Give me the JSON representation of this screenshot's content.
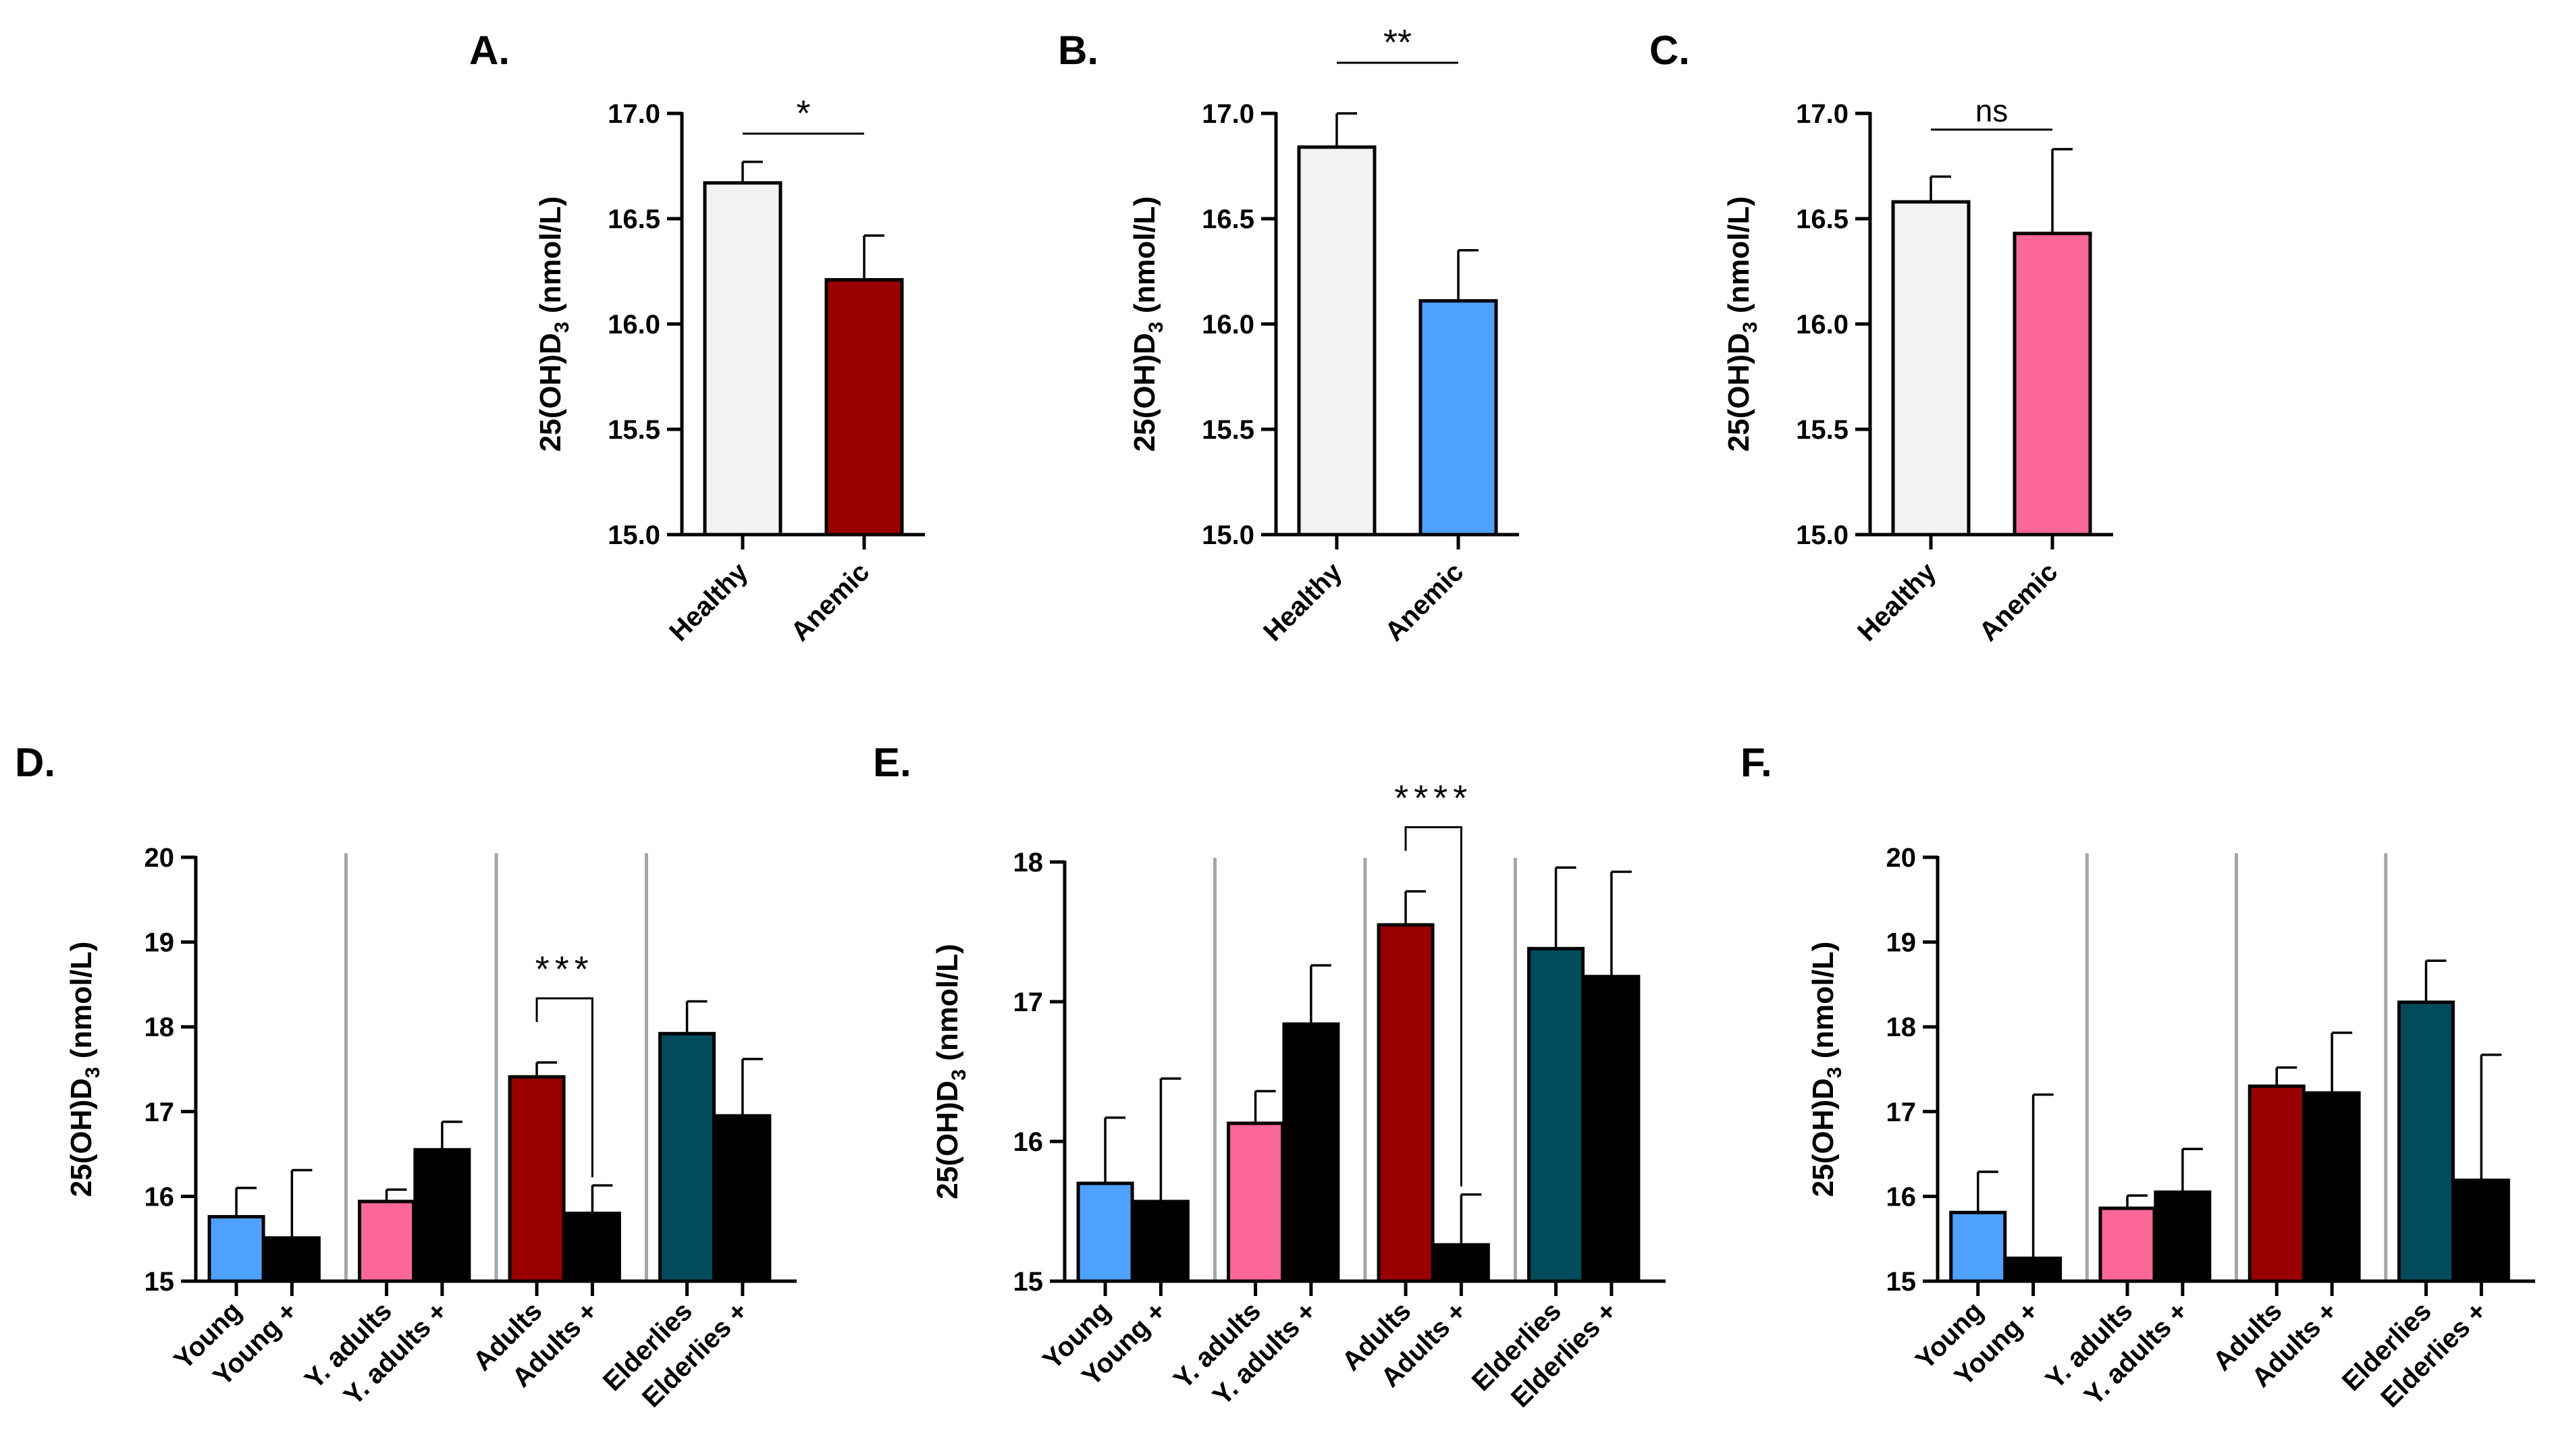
{
  "colors": {
    "healthy": "#f2f2f2",
    "dark_red": "#9b0000",
    "blue": "#4fa1ff",
    "pink": "#fb6897",
    "teal": "#004c5c",
    "black": "#000000",
    "separator": "#a6a6a6"
  },
  "chart_data": [
    {
      "id": "A",
      "type": "bar",
      "panel_label": "A.",
      "ylabel_main": "25(OH)D",
      "ylabel_sub": "3",
      "ylabel_unit": " (nmol/L)",
      "ylim": [
        15.0,
        17.0
      ],
      "yticks": [
        "15.0",
        "15.5",
        "16.0",
        "16.5",
        "17.0"
      ],
      "categories": [
        "Healthy",
        "Anemic"
      ],
      "values": [
        16.67,
        16.21
      ],
      "errors": [
        0.1,
        0.21
      ],
      "bar_colors": [
        "healthy",
        "dark_red"
      ],
      "significance": [
        {
          "from": 0,
          "to": 1,
          "label": "*"
        }
      ]
    },
    {
      "id": "B",
      "type": "bar",
      "panel_label": "B.",
      "ylabel_main": "25(OH)D",
      "ylabel_sub": "3",
      "ylabel_unit": " (nmol/L)",
      "ylim": [
        15.0,
        17.0
      ],
      "yticks": [
        "15.0",
        "15.5",
        "16.0",
        "16.5",
        "17.0"
      ],
      "categories": [
        "Healthy",
        "Anemic"
      ],
      "values": [
        16.84,
        16.11
      ],
      "errors": [
        0.16,
        0.24
      ],
      "bar_colors": [
        "healthy",
        "blue"
      ],
      "significance": [
        {
          "from": 0,
          "to": 1,
          "label": "**"
        }
      ]
    },
    {
      "id": "C",
      "type": "bar",
      "panel_label": "C.",
      "ylabel_main": "25(OH)D",
      "ylabel_sub": "3",
      "ylabel_unit": " (nmol/L)",
      "ylim": [
        15.0,
        17.0
      ],
      "yticks": [
        "15.0",
        "15.5",
        "16.0",
        "16.5",
        "17.0"
      ],
      "categories": [
        "Healthy",
        "Anemic"
      ],
      "values": [
        16.58,
        16.43
      ],
      "errors": [
        0.12,
        0.4
      ],
      "bar_colors": [
        "healthy",
        "pink"
      ],
      "significance": [
        {
          "from": 0,
          "to": 1,
          "label": "ns"
        }
      ]
    },
    {
      "id": "D",
      "type": "bar",
      "panel_label": "D.",
      "ylabel_main": "25(OH)D",
      "ylabel_sub": "3",
      "ylabel_unit": " (nmol/L)",
      "ylim": [
        15,
        20
      ],
      "yticks": [
        "15",
        "16",
        "17",
        "18",
        "19",
        "20"
      ],
      "categories": [
        "Young",
        "Young +",
        "Y. adults",
        "Y. adults +",
        "Adults",
        "Adults +",
        "Elderlies",
        "Elderlies +"
      ],
      "values": [
        15.76,
        15.51,
        15.94,
        16.55,
        17.41,
        15.8,
        17.92,
        16.95
      ],
      "errors": [
        0.34,
        0.8,
        0.14,
        0.33,
        0.17,
        0.33,
        0.38,
        0.67
      ],
      "bar_colors": [
        "blue",
        "black",
        "pink",
        "black",
        "dark_red",
        "black",
        "teal",
        "black"
      ],
      "significance": [
        {
          "from": 4,
          "to": 5,
          "label": "***"
        }
      ]
    },
    {
      "id": "E",
      "type": "bar",
      "panel_label": "E.",
      "ylabel_main": "25(OH)D",
      "ylabel_sub": "3",
      "ylabel_unit": " (nmol/L)",
      "ylim": [
        15,
        18
      ],
      "yticks": [
        "15",
        "16",
        "17",
        "18"
      ],
      "categories": [
        "Young",
        "Young +",
        "Y. adults",
        "Y. adults +",
        "Adults",
        "Adults +",
        "Elderlies",
        "Elderlies +"
      ],
      "values": [
        15.7,
        15.57,
        16.13,
        16.84,
        17.55,
        15.26,
        17.38,
        17.18
      ],
      "errors": [
        0.47,
        0.88,
        0.23,
        0.42,
        0.24,
        0.36,
        0.58,
        0.75
      ],
      "bar_colors": [
        "blue",
        "black",
        "pink",
        "black",
        "dark_red",
        "black",
        "teal",
        "black"
      ],
      "significance": [
        {
          "from": 4,
          "to": 5,
          "label": "****"
        }
      ]
    },
    {
      "id": "F",
      "type": "bar",
      "panel_label": "F.",
      "ylabel_main": "25(OH)D",
      "ylabel_sub": "3",
      "ylabel_unit": " (nmol/L)",
      "ylim": [
        15,
        20
      ],
      "yticks": [
        "15",
        "16",
        "17",
        "18",
        "19",
        "20"
      ],
      "categories": [
        "Young",
        "Young +",
        "Y. adults",
        "Y. adults +",
        "Adults",
        "Adults +",
        "Elderlies",
        "Elderlies +"
      ],
      "values": [
        15.81,
        15.27,
        15.86,
        16.05,
        17.3,
        17.22,
        18.29,
        16.19
      ],
      "errors": [
        0.48,
        1.93,
        0.15,
        0.51,
        0.22,
        0.71,
        0.49,
        1.48
      ],
      "bar_colors": [
        "blue",
        "black",
        "pink",
        "black",
        "dark_red",
        "black",
        "teal",
        "black"
      ],
      "significance": []
    }
  ]
}
